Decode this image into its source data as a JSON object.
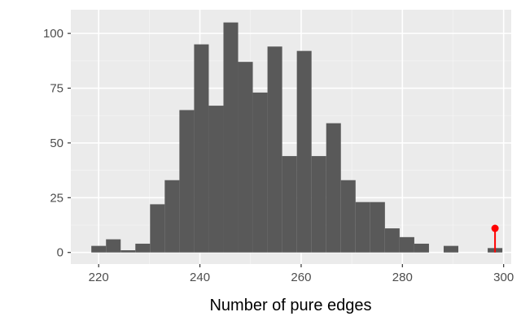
{
  "colors": {
    "panel": "#ebebeb",
    "grid_major": "#ffffff",
    "grid_minor": "#f4f4f4",
    "bar_fill": "#595959",
    "marker": "#ff0000",
    "tick": "#333333"
  },
  "chart_data": {
    "type": "bar",
    "xlabel": "Number of pure edges",
    "ylabel": "",
    "xlim": [
      214.5,
      301.5
    ],
    "ylim": [
      -5.3,
      110.8
    ],
    "grid": true,
    "bin_width": 2.9,
    "x_ticks": [
      220,
      240,
      260,
      280,
      300
    ],
    "y_ticks": [
      0,
      25,
      50,
      75,
      100
    ],
    "bins": [
      {
        "x": 220.0,
        "count": 3
      },
      {
        "x": 222.9,
        "count": 6
      },
      {
        "x": 225.8,
        "count": 1
      },
      {
        "x": 228.7,
        "count": 4
      },
      {
        "x": 231.6,
        "count": 22
      },
      {
        "x": 234.5,
        "count": 33
      },
      {
        "x": 237.4,
        "count": 65
      },
      {
        "x": 240.3,
        "count": 95
      },
      {
        "x": 243.2,
        "count": 67
      },
      {
        "x": 246.1,
        "count": 105
      },
      {
        "x": 249.0,
        "count": 87
      },
      {
        "x": 251.9,
        "count": 73
      },
      {
        "x": 254.8,
        "count": 94
      },
      {
        "x": 257.7,
        "count": 44
      },
      {
        "x": 260.6,
        "count": 92
      },
      {
        "x": 263.5,
        "count": 44
      },
      {
        "x": 266.4,
        "count": 59
      },
      {
        "x": 269.3,
        "count": 33
      },
      {
        "x": 272.2,
        "count": 23
      },
      {
        "x": 275.1,
        "count": 23
      },
      {
        "x": 278.0,
        "count": 11
      },
      {
        "x": 280.9,
        "count": 7
      },
      {
        "x": 283.8,
        "count": 4
      },
      {
        "x": 286.7,
        "count": 0
      },
      {
        "x": 289.6,
        "count": 3
      },
      {
        "x": 292.5,
        "count": 0
      },
      {
        "x": 295.4,
        "count": 0
      },
      {
        "x": 298.3,
        "count": 2
      }
    ],
    "observed": {
      "x": 298.3,
      "y": 11
    }
  }
}
